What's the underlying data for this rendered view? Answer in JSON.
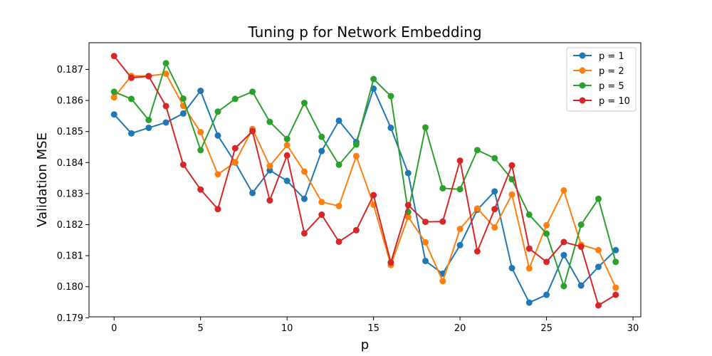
{
  "chart_data": {
    "type": "line",
    "title": "Tuning p for Network Embedding",
    "xlabel": "p",
    "ylabel": "Validation MSE",
    "xlim": [
      -1.45,
      30.45
    ],
    "ylim": [
      0.17903,
      0.18786
    ],
    "xticks": [
      0,
      5,
      10,
      15,
      20,
      25,
      30
    ],
    "yticks": [
      0.179,
      0.18,
      0.181,
      0.182,
      0.183,
      0.184,
      0.185,
      0.186,
      0.187
    ],
    "ytick_labels": [
      "0.179",
      "0.180",
      "0.181",
      "0.182",
      "0.183",
      "0.184",
      "0.185",
      "0.186",
      "0.187"
    ],
    "grid": false,
    "legend_position": "top-right",
    "x": [
      0,
      1,
      2,
      3,
      4,
      5,
      6,
      7,
      8,
      9,
      10,
      11,
      12,
      13,
      14,
      15,
      16,
      17,
      18,
      19,
      20,
      21,
      22,
      23,
      24,
      25,
      26,
      27,
      28,
      29
    ],
    "series": [
      {
        "name": "p = 1",
        "color": "#1f77b4",
        "values": [
          0.18555,
          0.18494,
          0.18512,
          0.18529,
          0.18558,
          0.18631,
          0.18487,
          0.184,
          0.18302,
          0.18375,
          0.18341,
          0.18283,
          0.18437,
          0.18535,
          0.18466,
          0.18638,
          0.18512,
          0.18366,
          0.18083,
          0.18042,
          0.18134,
          0.18248,
          0.18307,
          0.1806,
          0.17949,
          0.17974,
          0.18102,
          0.18004,
          0.18064,
          0.18118
        ]
      },
      {
        "name": "p = 2",
        "color": "#ff7f0e",
        "values": [
          0.1861,
          0.18679,
          0.18679,
          0.18686,
          0.18583,
          0.18498,
          0.18362,
          0.18401,
          0.18508,
          0.18389,
          0.18456,
          0.18371,
          0.18273,
          0.1826,
          0.18421,
          0.18264,
          0.1807,
          0.18225,
          0.18143,
          0.18018,
          0.18186,
          0.18252,
          0.18191,
          0.18297,
          0.18059,
          0.18198,
          0.1831,
          0.18135,
          0.18118,
          0.17997
        ]
      },
      {
        "name": "p = 5",
        "color": "#2ca02c",
        "values": [
          0.18628,
          0.18605,
          0.18537,
          0.1872,
          0.18606,
          0.1844,
          0.18564,
          0.18605,
          0.18628,
          0.18531,
          0.18476,
          0.18592,
          0.18483,
          0.18393,
          0.18458,
          0.18669,
          0.18614,
          0.18241,
          0.18513,
          0.18317,
          0.18314,
          0.1844,
          0.18414,
          0.18346,
          0.18232,
          0.18171,
          0.18002,
          0.182,
          0.18283,
          0.1808
        ]
      },
      {
        "name": "p = 10",
        "color": "#d62728",
        "values": [
          0.18743,
          0.18673,
          0.18678,
          0.18582,
          0.18393,
          0.18313,
          0.1825,
          0.18446,
          0.18501,
          0.18278,
          0.18423,
          0.18172,
          0.18232,
          0.18145,
          0.18182,
          0.18295,
          0.18078,
          0.18263,
          0.18209,
          0.1821,
          0.18406,
          0.18114,
          0.1825,
          0.18391,
          0.18123,
          0.1808,
          0.18144,
          0.18129,
          0.1794,
          0.17974
        ]
      }
    ]
  }
}
